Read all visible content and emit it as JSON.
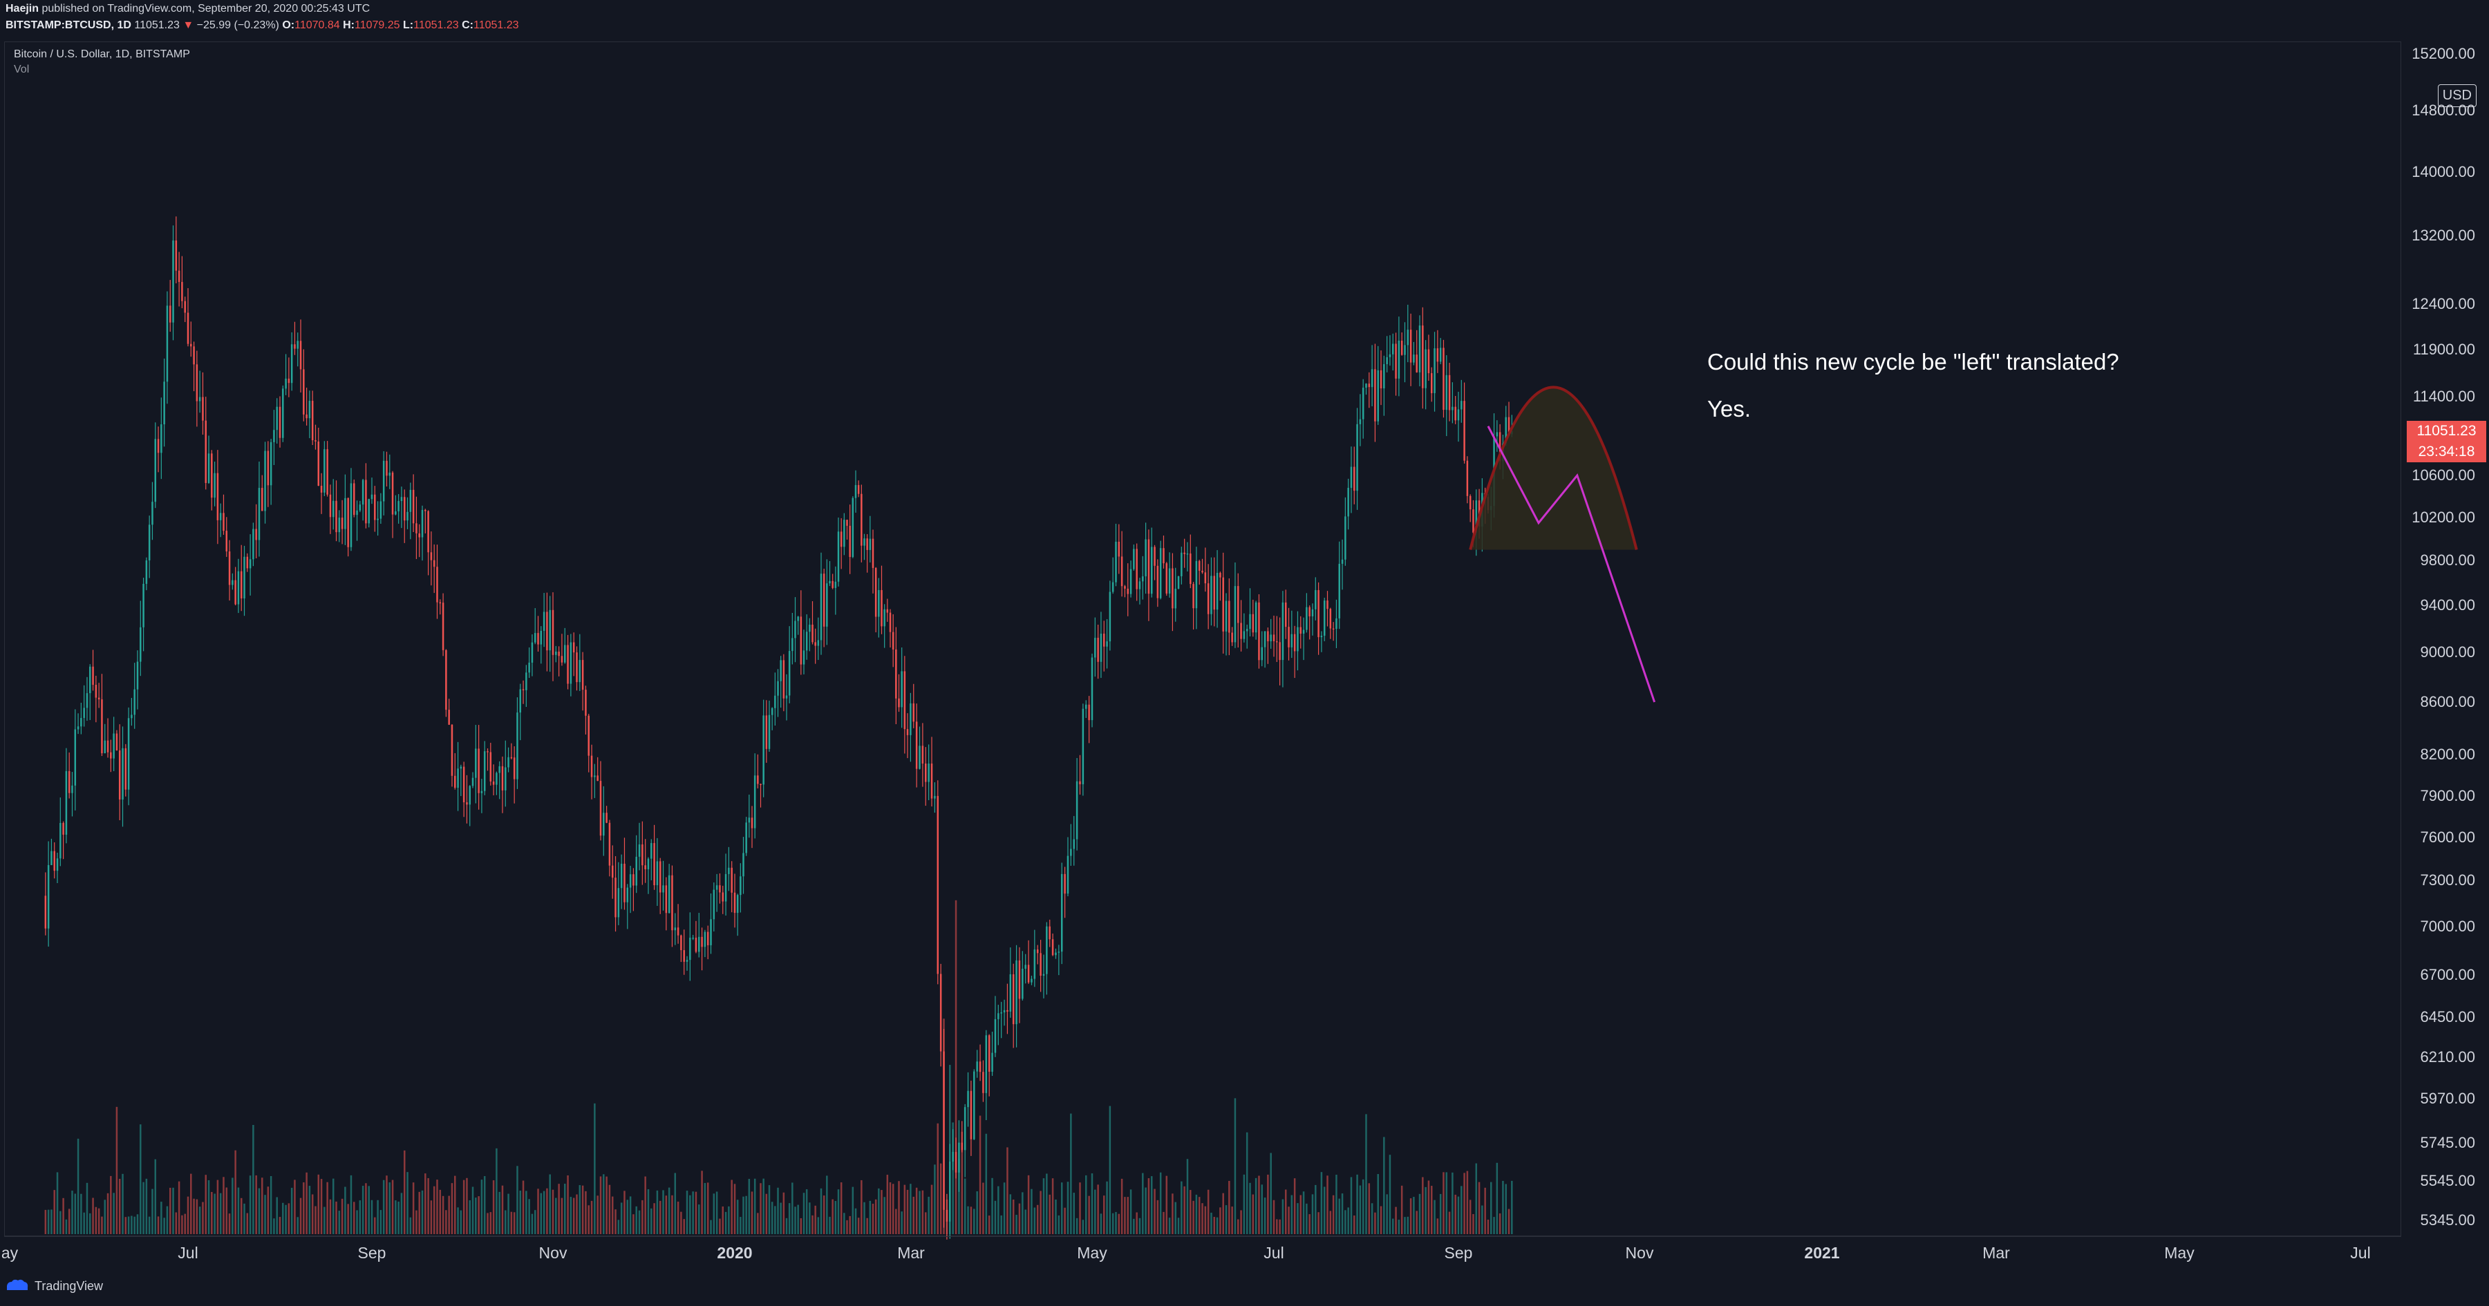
{
  "header": {
    "publisher": "Haejin",
    "published_text": "published on TradingView.com, September 20, 2020 00:25:43 UTC",
    "symbol": "BITSTAMP:BTCUSD, 1D",
    "last": "11051.23",
    "change_arrow": "▼",
    "change": "−25.99 (−0.23%)",
    "o_label": "O:",
    "o_value": "11070.84",
    "h_label": "H:",
    "h_value": "11079.25",
    "l_label": "L:",
    "l_value": "11051.23",
    "c_label": "C:",
    "c_value": "11051.23"
  },
  "legend": {
    "title": "Bitcoin / U.S. Dollar, 1D, BITSTAMP",
    "volume": "Vol"
  },
  "annotation": {
    "line1": "Could this new cycle be \"left\" translated?",
    "line2": "Yes."
  },
  "price_scale": {
    "currency": "USD",
    "ticks": [
      "15200.00",
      "14800.00",
      "14000.00",
      "13200.00",
      "12400.00",
      "11900.00",
      "11400.00",
      "10600.00",
      "10200.00",
      "9800.00",
      "9400.00",
      "9000.00",
      "8600.00",
      "8200.00",
      "7900.00",
      "7600.00",
      "7300.00",
      "7000.00",
      "6700.00",
      "6450.00",
      "6210.00",
      "5970.00",
      "5745.00",
      "5545.00",
      "5345.00"
    ],
    "last_price_label": "11051.23",
    "countdown_label": "23:34:18"
  },
  "time_axis": {
    "ticks": [
      {
        "label": "ay",
        "bold": false
      },
      {
        "label": "Jul",
        "bold": false
      },
      {
        "label": "Sep",
        "bold": false
      },
      {
        "label": "Nov",
        "bold": false
      },
      {
        "label": "2020",
        "bold": true
      },
      {
        "label": "Mar",
        "bold": false
      },
      {
        "label": "May",
        "bold": false
      },
      {
        "label": "Jul",
        "bold": false
      },
      {
        "label": "Sep",
        "bold": false
      },
      {
        "label": "Nov",
        "bold": false
      },
      {
        "label": "2021",
        "bold": true
      },
      {
        "label": "Mar",
        "bold": false
      },
      {
        "label": "May",
        "bold": false
      },
      {
        "label": "Jul",
        "bold": false
      }
    ]
  },
  "footer": {
    "brand": "TradingView"
  },
  "colors": {
    "background": "#131722",
    "up": "#26a69a",
    "down": "#ef5350",
    "projection": "#cc33cc",
    "arc": "#8b1a1a",
    "arc_fill": "#2e2a1c"
  },
  "chart_data": {
    "type": "candlestick",
    "symbol": "BITSTAMP:BTCUSD",
    "interval": "1D",
    "scale": "log",
    "ylim": [
      5200,
      15300
    ],
    "x_range": [
      "2019-05",
      "2021-07"
    ],
    "last_close": 11051.23,
    "price_path": [
      {
        "date": "2019-05-14",
        "price": 7200
      },
      {
        "date": "2019-05-28",
        "price": 8700
      },
      {
        "date": "2019-06-10",
        "price": 8000
      },
      {
        "date": "2019-06-26",
        "price": 12900
      },
      {
        "date": "2019-07-06",
        "price": 11000
      },
      {
        "date": "2019-07-16",
        "price": 9400
      },
      {
        "date": "2019-08-06",
        "price": 11800
      },
      {
        "date": "2019-08-20",
        "price": 10100
      },
      {
        "date": "2019-09-05",
        "price": 10500
      },
      {
        "date": "2019-09-22",
        "price": 10000
      },
      {
        "date": "2019-09-28",
        "price": 8100
      },
      {
        "date": "2019-10-18",
        "price": 8000
      },
      {
        "date": "2019-10-26",
        "price": 9300
      },
      {
        "date": "2019-11-10",
        "price": 8800
      },
      {
        "date": "2019-11-22",
        "price": 7200
      },
      {
        "date": "2019-12-01",
        "price": 7500
      },
      {
        "date": "2019-12-17",
        "price": 6900
      },
      {
        "date": "2019-12-31",
        "price": 7200
      },
      {
        "date": "2020-01-15",
        "price": 8700
      },
      {
        "date": "2020-01-31",
        "price": 9400
      },
      {
        "date": "2020-02-13",
        "price": 10300
      },
      {
        "date": "2020-02-28",
        "price": 8600
      },
      {
        "date": "2020-03-10",
        "price": 7800
      },
      {
        "date": "2020-03-13",
        "price": 5400
      },
      {
        "date": "2020-03-31",
        "price": 6450
      },
      {
        "date": "2020-04-20",
        "price": 7000
      },
      {
        "date": "2020-04-30",
        "price": 8700
      },
      {
        "date": "2020-05-10",
        "price": 9800
      },
      {
        "date": "2020-06-01",
        "price": 9600
      },
      {
        "date": "2020-06-26",
        "price": 9200
      },
      {
        "date": "2020-07-10",
        "price": 9200
      },
      {
        "date": "2020-07-21",
        "price": 9400
      },
      {
        "date": "2020-08-01",
        "price": 11400
      },
      {
        "date": "2020-08-17",
        "price": 11900
      },
      {
        "date": "2020-09-02",
        "price": 11400
      },
      {
        "date": "2020-09-05",
        "price": 10200
      },
      {
        "date": "2020-09-19",
        "price": 11051.23
      }
    ],
    "annotations": {
      "arc": {
        "start": {
          "date": "2020-09-05",
          "price": 9900
        },
        "peak": {
          "date": "2020-10-03",
          "price": 11500
        },
        "end": {
          "date": "2020-10-31",
          "price": 9900
        }
      },
      "projection_path": [
        {
          "date": "2020-09-11",
          "price": 11100
        },
        {
          "date": "2020-09-28",
          "price": 10150
        },
        {
          "date": "2020-10-11",
          "price": 10600
        },
        {
          "date": "2020-11-06",
          "price": 8600
        }
      ]
    }
  }
}
